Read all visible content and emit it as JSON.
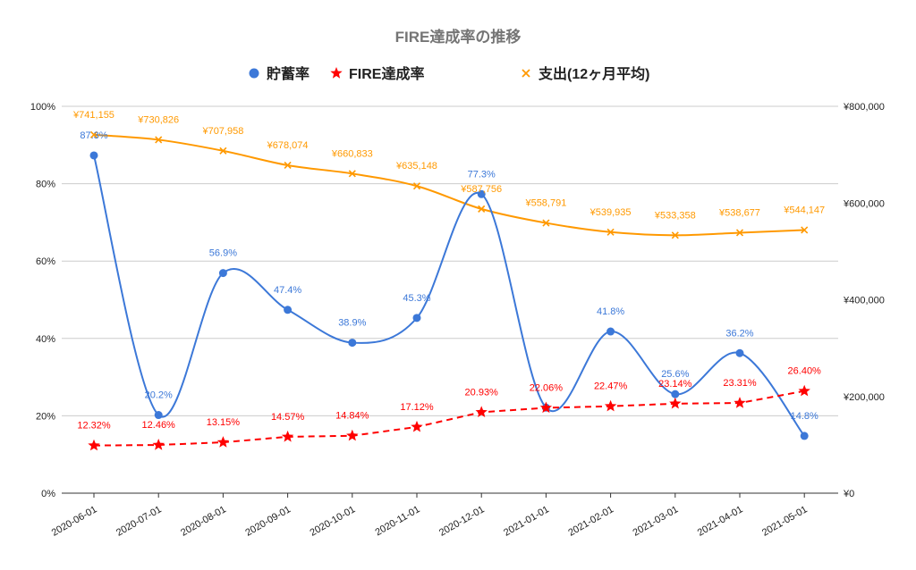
{
  "chart_data": {
    "type": "line",
    "title": "FIRE達成率の推移",
    "legend_position": "top",
    "categories": [
      "2020-06-01",
      "2020-07-01",
      "2020-08-01",
      "2020-09-01",
      "2020-10-01",
      "2020-11-01",
      "2020-12-01",
      "2021-01-01",
      "2021-02-01",
      "2021-03-01",
      "2021-04-01",
      "2021-05-01"
    ],
    "left_axis": {
      "ylim": [
        0,
        100
      ],
      "ticks": [
        "0%",
        "20%",
        "40%",
        "60%",
        "80%",
        "100%"
      ],
      "tick_values": [
        0,
        20,
        40,
        60,
        80,
        100
      ]
    },
    "right_axis": {
      "ylim": [
        0,
        800000
      ],
      "ticks": [
        "¥0",
        "¥200,000",
        "¥400,000",
        "¥600,000",
        "¥800,000"
      ],
      "tick_values": [
        0,
        200000,
        400000,
        600000,
        800000
      ]
    },
    "grid": true,
    "series": [
      {
        "name": "貯蓄率",
        "axis": "left",
        "color": "#3C78D8",
        "marker": "circle",
        "line_style": "smooth",
        "values": [
          87.3,
          20.2,
          56.9,
          47.4,
          38.9,
          45.3,
          77.3,
          22.1,
          41.8,
          25.6,
          36.2,
          14.8
        ],
        "labels": [
          "87.3%",
          "20.2%",
          "56.9%",
          "47.4%",
          "38.9%",
          "45.3%",
          "77.3%",
          "",
          "41.8%",
          "25.6%",
          "36.2%",
          "14.8%"
        ]
      },
      {
        "name": "FIRE達成率",
        "axis": "left",
        "color": "#FF0000",
        "marker": "star",
        "line_style": "dashed",
        "values": [
          12.32,
          12.46,
          13.15,
          14.57,
          14.84,
          17.12,
          20.93,
          22.06,
          22.47,
          23.14,
          23.31,
          26.4
        ],
        "labels": [
          "12.32%",
          "12.46%",
          "13.15%",
          "14.57%",
          "14.84%",
          "17.12%",
          "20.93%",
          "22.06%",
          "22.47%",
          "23.14%",
          "23.31%",
          "26.40%"
        ]
      },
      {
        "name": "支出(12ヶ月平均)",
        "axis": "right",
        "color": "#FF9900",
        "marker": "x",
        "line_style": "smooth",
        "values": [
          741155,
          730826,
          707958,
          678074,
          660833,
          635148,
          587756,
          558791,
          539935,
          533358,
          538677,
          544147
        ],
        "labels": [
          "¥741,155",
          "¥730,826",
          "¥707,958",
          "¥678,074",
          "¥660,833",
          "¥635,148",
          "¥587,756",
          "¥558,791",
          "¥539,935",
          "¥533,358",
          "¥538,677",
          "¥544,147"
        ]
      }
    ]
  }
}
